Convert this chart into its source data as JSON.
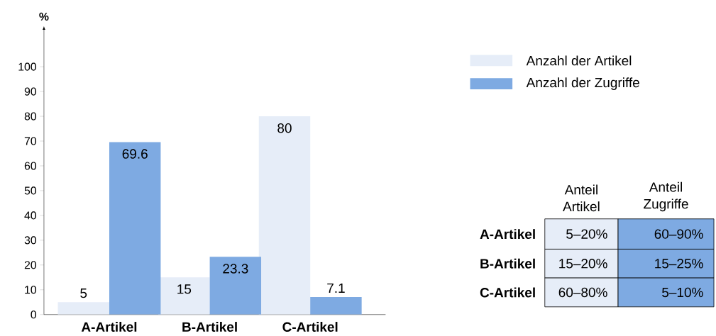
{
  "chart_data": [
    {
      "type": "bar",
      "ylabel": "%",
      "categories": [
        "A-Artikel",
        "B-Artikel",
        "C-Artikel"
      ],
      "series": [
        {
          "name": "Anzahl der Artikel",
          "color": "#e6edf8",
          "values": [
            5,
            15,
            80
          ]
        },
        {
          "name": "Anzahl der Zugriffe",
          "color": "#7eaae2",
          "values": [
            69.6,
            23.3,
            7.1
          ]
        }
      ],
      "ylim": [
        0,
        115
      ],
      "yticks": [
        0,
        10,
        20,
        30,
        40,
        50,
        60,
        70,
        80,
        90,
        100
      ],
      "data_labels": true,
      "legend": "right"
    },
    {
      "type": "other",
      "categories": [
        "Anteil Artikel",
        "Anteil Zugriffe"
      ],
      "y_categories": [
        "A-Artikel",
        "B-Artikel",
        "C-Artikel"
      ],
      "cell_labels": [
        [
          "5–20%",
          "60–90%"
        ],
        [
          "15–20%",
          "15–25%"
        ],
        [
          "60–80%",
          "5–10%"
        ]
      ]
    }
  ]
}
